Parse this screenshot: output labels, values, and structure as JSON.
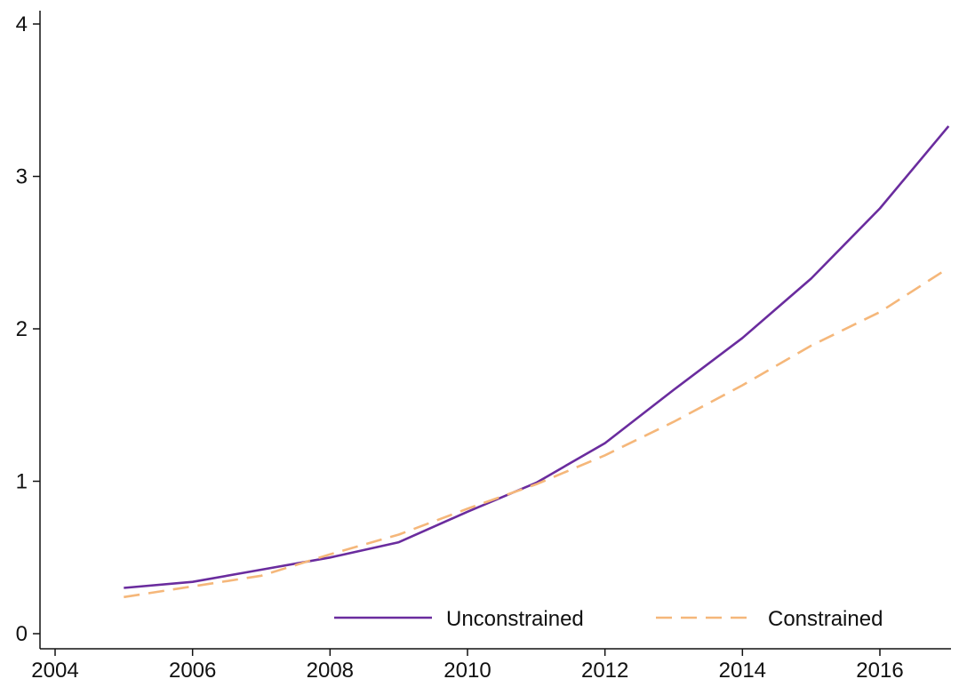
{
  "chart_data": {
    "type": "line",
    "title": "",
    "xlabel": "",
    "ylabel": "",
    "xlim": [
      2004,
      2017
    ],
    "ylim": [
      0,
      4
    ],
    "x_ticks": [
      2004,
      2006,
      2008,
      2010,
      2012,
      2014,
      2016
    ],
    "y_ticks": [
      0,
      1,
      2,
      3,
      4
    ],
    "x": [
      2005,
      2006,
      2007,
      2008,
      2009,
      2010,
      2011,
      2012,
      2013,
      2014,
      2015,
      2016,
      2017
    ],
    "series": [
      {
        "name": "Unconstrained",
        "style": "solid",
        "color": "#6a2c9e",
        "values": [
          0.3,
          0.34,
          0.42,
          0.5,
          0.6,
          0.8,
          0.99,
          1.25,
          1.6,
          1.94,
          2.33,
          2.79,
          3.33
        ]
      },
      {
        "name": "Constrained",
        "style": "dashed",
        "color": "#f5b77a",
        "values": [
          0.24,
          0.31,
          0.38,
          0.52,
          0.65,
          0.82,
          0.98,
          1.17,
          1.39,
          1.63,
          1.89,
          2.11,
          2.4
        ]
      }
    ],
    "grid": false,
    "legend_position": "bottom-right"
  }
}
